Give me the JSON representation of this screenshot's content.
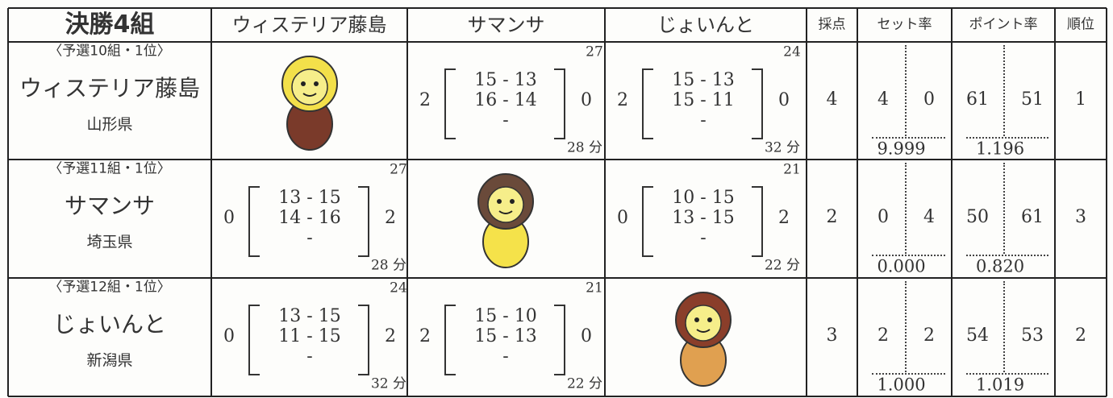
{
  "header": {
    "corner": "決勝4組",
    "teams": [
      "ウィステリア藤島",
      "サマンサ",
      "じょいんと"
    ],
    "score": "採点",
    "set_rate": "セット率",
    "point_rate": "ポイント率",
    "rank": "順位"
  },
  "rows": [
    {
      "qualifier": "〈予選10組・1位〉",
      "team": "ウィステリア藤島",
      "prefecture": "山形県",
      "matches": [
        null,
        {
          "left": "2",
          "sets": [
            "15 - 13",
            "16 - 14",
            "-"
          ],
          "right": "0",
          "total": "27",
          "time": "28 分"
        },
        {
          "left": "2",
          "sets": [
            "15 - 13",
            "15 - 11",
            "-"
          ],
          "right": "0",
          "total": "24",
          "time": "32 分"
        }
      ],
      "score": "4",
      "sets_won": "4",
      "sets_lost": "0",
      "set_rate": "9.999",
      "points_for": "61",
      "points_against": "51",
      "point_rate": "1.196",
      "rank": "1"
    },
    {
      "qualifier": "〈予選11組・1位〉",
      "team": "サマンサ",
      "prefecture": "埼玉県",
      "matches": [
        {
          "left": "0",
          "sets": [
            "13 - 15",
            "14 - 16",
            "-"
          ],
          "right": "2",
          "total": "27",
          "time": "28 分"
        },
        null,
        {
          "left": "0",
          "sets": [
            "10 - 15",
            "13 - 15",
            "-"
          ],
          "right": "2",
          "total": "21",
          "time": "22 分"
        }
      ],
      "score": "2",
      "sets_won": "0",
      "sets_lost": "4",
      "set_rate": "0.000",
      "points_for": "50",
      "points_against": "61",
      "point_rate": "0.820",
      "rank": "3"
    },
    {
      "qualifier": "〈予選12組・1位〉",
      "team": "じょいんと",
      "prefecture": "新潟県",
      "matches": [
        {
          "left": "0",
          "sets": [
            "13 - 15",
            "11 - 15",
            "-"
          ],
          "right": "2",
          "total": "24",
          "time": "32 分"
        },
        {
          "left": "2",
          "sets": [
            "15 - 10",
            "15 - 13",
            "-"
          ],
          "right": "0",
          "total": "21",
          "time": "22 分"
        },
        null
      ],
      "score": "3",
      "sets_won": "2",
      "sets_lost": "2",
      "set_rate": "1.000",
      "points_for": "54",
      "points_against": "53",
      "point_rate": "1.019",
      "rank": "2"
    }
  ]
}
